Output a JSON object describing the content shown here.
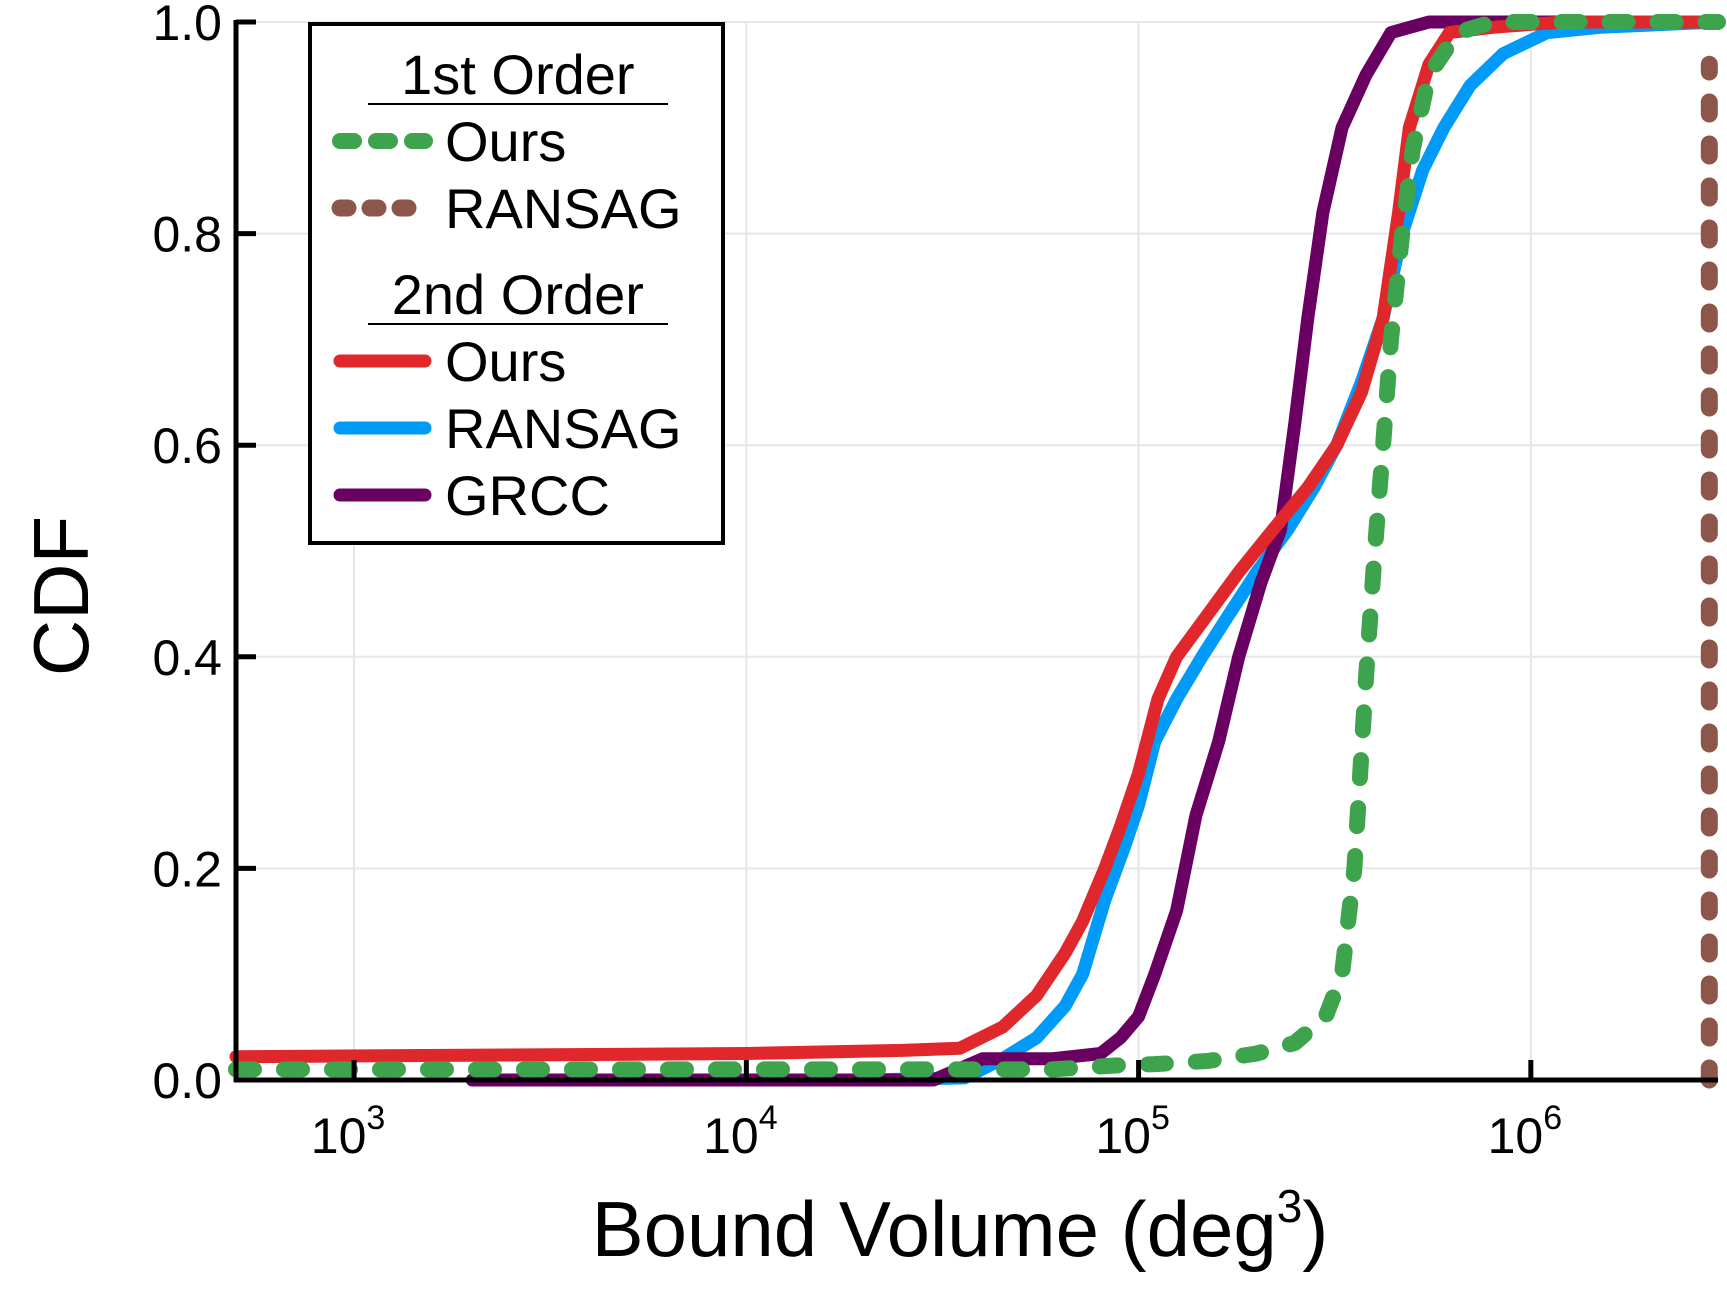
{
  "chart_data": {
    "type": "line",
    "title": "",
    "xlabel": "Bound Volume (deg",
    "xlabel_superscript": "3",
    "xlabel_suffix": ")",
    "ylabel": "CDF",
    "xscale": "log",
    "xlim": [
      500,
      3000000
    ],
    "ylim": [
      0,
      1.0
    ],
    "grid": true,
    "legend_position": "top-left",
    "x_ticks": [
      {
        "value": 1000,
        "base": "10",
        "exp": "3"
      },
      {
        "value": 10000,
        "base": "10",
        "exp": "4"
      },
      {
        "value": 100000,
        "base": "10",
        "exp": "5"
      },
      {
        "value": 1000000,
        "base": "10",
        "exp": "6"
      }
    ],
    "y_ticks": [
      {
        "value": 0.0,
        "label": "0.0"
      },
      {
        "value": 0.2,
        "label": "0.2"
      },
      {
        "value": 0.4,
        "label": "0.4"
      },
      {
        "value": 0.6,
        "label": "0.6"
      },
      {
        "value": 0.8,
        "label": "0.8"
      },
      {
        "value": 1.0,
        "label": "1.0"
      }
    ],
    "legend_groups": [
      {
        "title": "1st Order",
        "entries": [
          "ours1",
          "ransag1"
        ]
      },
      {
        "title": "2nd Order",
        "entries": [
          "ours2",
          "ransag2",
          "grcc2"
        ]
      }
    ],
    "series": [
      {
        "id": "ransag2",
        "name": "RANSAG",
        "order": "2nd Order",
        "color": "#009af9",
        "style": "solid",
        "points": [
          [
            2800,
            0.0
          ],
          [
            20000,
            0.0
          ],
          [
            36000,
            0.002
          ],
          [
            45000,
            0.02
          ],
          [
            55000,
            0.04
          ],
          [
            65000,
            0.07
          ],
          [
            72000,
            0.1
          ],
          [
            82000,
            0.17
          ],
          [
            92000,
            0.22
          ],
          [
            100000,
            0.26
          ],
          [
            110000,
            0.32
          ],
          [
            125000,
            0.36
          ],
          [
            145000,
            0.4
          ],
          [
            170000,
            0.44
          ],
          [
            200000,
            0.48
          ],
          [
            240000,
            0.52
          ],
          [
            280000,
            0.56
          ],
          [
            320000,
            0.6
          ],
          [
            370000,
            0.66
          ],
          [
            420000,
            0.72
          ],
          [
            470000,
            0.8
          ],
          [
            530000,
            0.86
          ],
          [
            600000,
            0.9
          ],
          [
            700000,
            0.94
          ],
          [
            850000,
            0.97
          ],
          [
            1100000,
            0.99
          ],
          [
            1500000,
            0.995
          ],
          [
            3000000,
            1.0
          ]
        ]
      },
      {
        "id": "grcc2",
        "name": "GRCC",
        "order": "2nd Order",
        "color": "#6a0062",
        "style": "solid",
        "points": [
          [
            2000,
            0.0
          ],
          [
            30000,
            0.0
          ],
          [
            40000,
            0.02
          ],
          [
            60000,
            0.02
          ],
          [
            80000,
            0.025
          ],
          [
            90000,
            0.04
          ],
          [
            100000,
            0.06
          ],
          [
            110000,
            0.1
          ],
          [
            125000,
            0.16
          ],
          [
            140000,
            0.25
          ],
          [
            160000,
            0.32
          ],
          [
            180000,
            0.4
          ],
          [
            205000,
            0.47
          ],
          [
            230000,
            0.52
          ],
          [
            250000,
            0.62
          ],
          [
            270000,
            0.72
          ],
          [
            295000,
            0.82
          ],
          [
            330000,
            0.9
          ],
          [
            380000,
            0.95
          ],
          [
            440000,
            0.99
          ],
          [
            550000,
            1.0
          ],
          [
            3000000,
            1.0
          ]
        ]
      },
      {
        "id": "ours2",
        "name": "Ours",
        "order": "2nd Order",
        "color": "#e0272c",
        "style": "solid",
        "points": [
          [
            500,
            0.022
          ],
          [
            10000,
            0.025
          ],
          [
            25000,
            0.028
          ],
          [
            35000,
            0.03
          ],
          [
            45000,
            0.05
          ],
          [
            55000,
            0.08
          ],
          [
            65000,
            0.12
          ],
          [
            72000,
            0.15
          ],
          [
            82000,
            0.2
          ],
          [
            90000,
            0.24
          ],
          [
            100000,
            0.29
          ],
          [
            112000,
            0.36
          ],
          [
            125000,
            0.4
          ],
          [
            150000,
            0.44
          ],
          [
            180000,
            0.48
          ],
          [
            220000,
            0.52
          ],
          [
            270000,
            0.56
          ],
          [
            320000,
            0.6
          ],
          [
            370000,
            0.65
          ],
          [
            420000,
            0.72
          ],
          [
            460000,
            0.82
          ],
          [
            490000,
            0.9
          ],
          [
            550000,
            0.96
          ],
          [
            620000,
            0.99
          ],
          [
            800000,
            0.995
          ],
          [
            1200000,
            1.0
          ],
          [
            3000000,
            1.0
          ]
        ]
      },
      {
        "id": "ours1",
        "name": "Ours",
        "order": "1st Order",
        "color": "#3da44d",
        "style": "dashed",
        "points": [
          [
            500,
            0.01
          ],
          [
            60000,
            0.01
          ],
          [
            90000,
            0.014
          ],
          [
            110000,
            0.015
          ],
          [
            150000,
            0.018
          ],
          [
            200000,
            0.025
          ],
          [
            250000,
            0.035
          ],
          [
            300000,
            0.06
          ],
          [
            330000,
            0.1
          ],
          [
            355000,
            0.2
          ],
          [
            380000,
            0.38
          ],
          [
            400000,
            0.5
          ],
          [
            420000,
            0.6
          ],
          [
            440000,
            0.7
          ],
          [
            470000,
            0.8
          ],
          [
            500000,
            0.88
          ],
          [
            550000,
            0.95
          ],
          [
            650000,
            0.99
          ],
          [
            800000,
            1.0
          ],
          [
            3000000,
            1.0
          ]
        ]
      },
      {
        "id": "ransag1",
        "name": "RANSAG",
        "order": "1st Order",
        "color": "#8c564b",
        "style": "dotted",
        "points": [
          [
            2850000,
            0.0
          ],
          [
            2850000,
            0.96
          ]
        ]
      }
    ]
  }
}
